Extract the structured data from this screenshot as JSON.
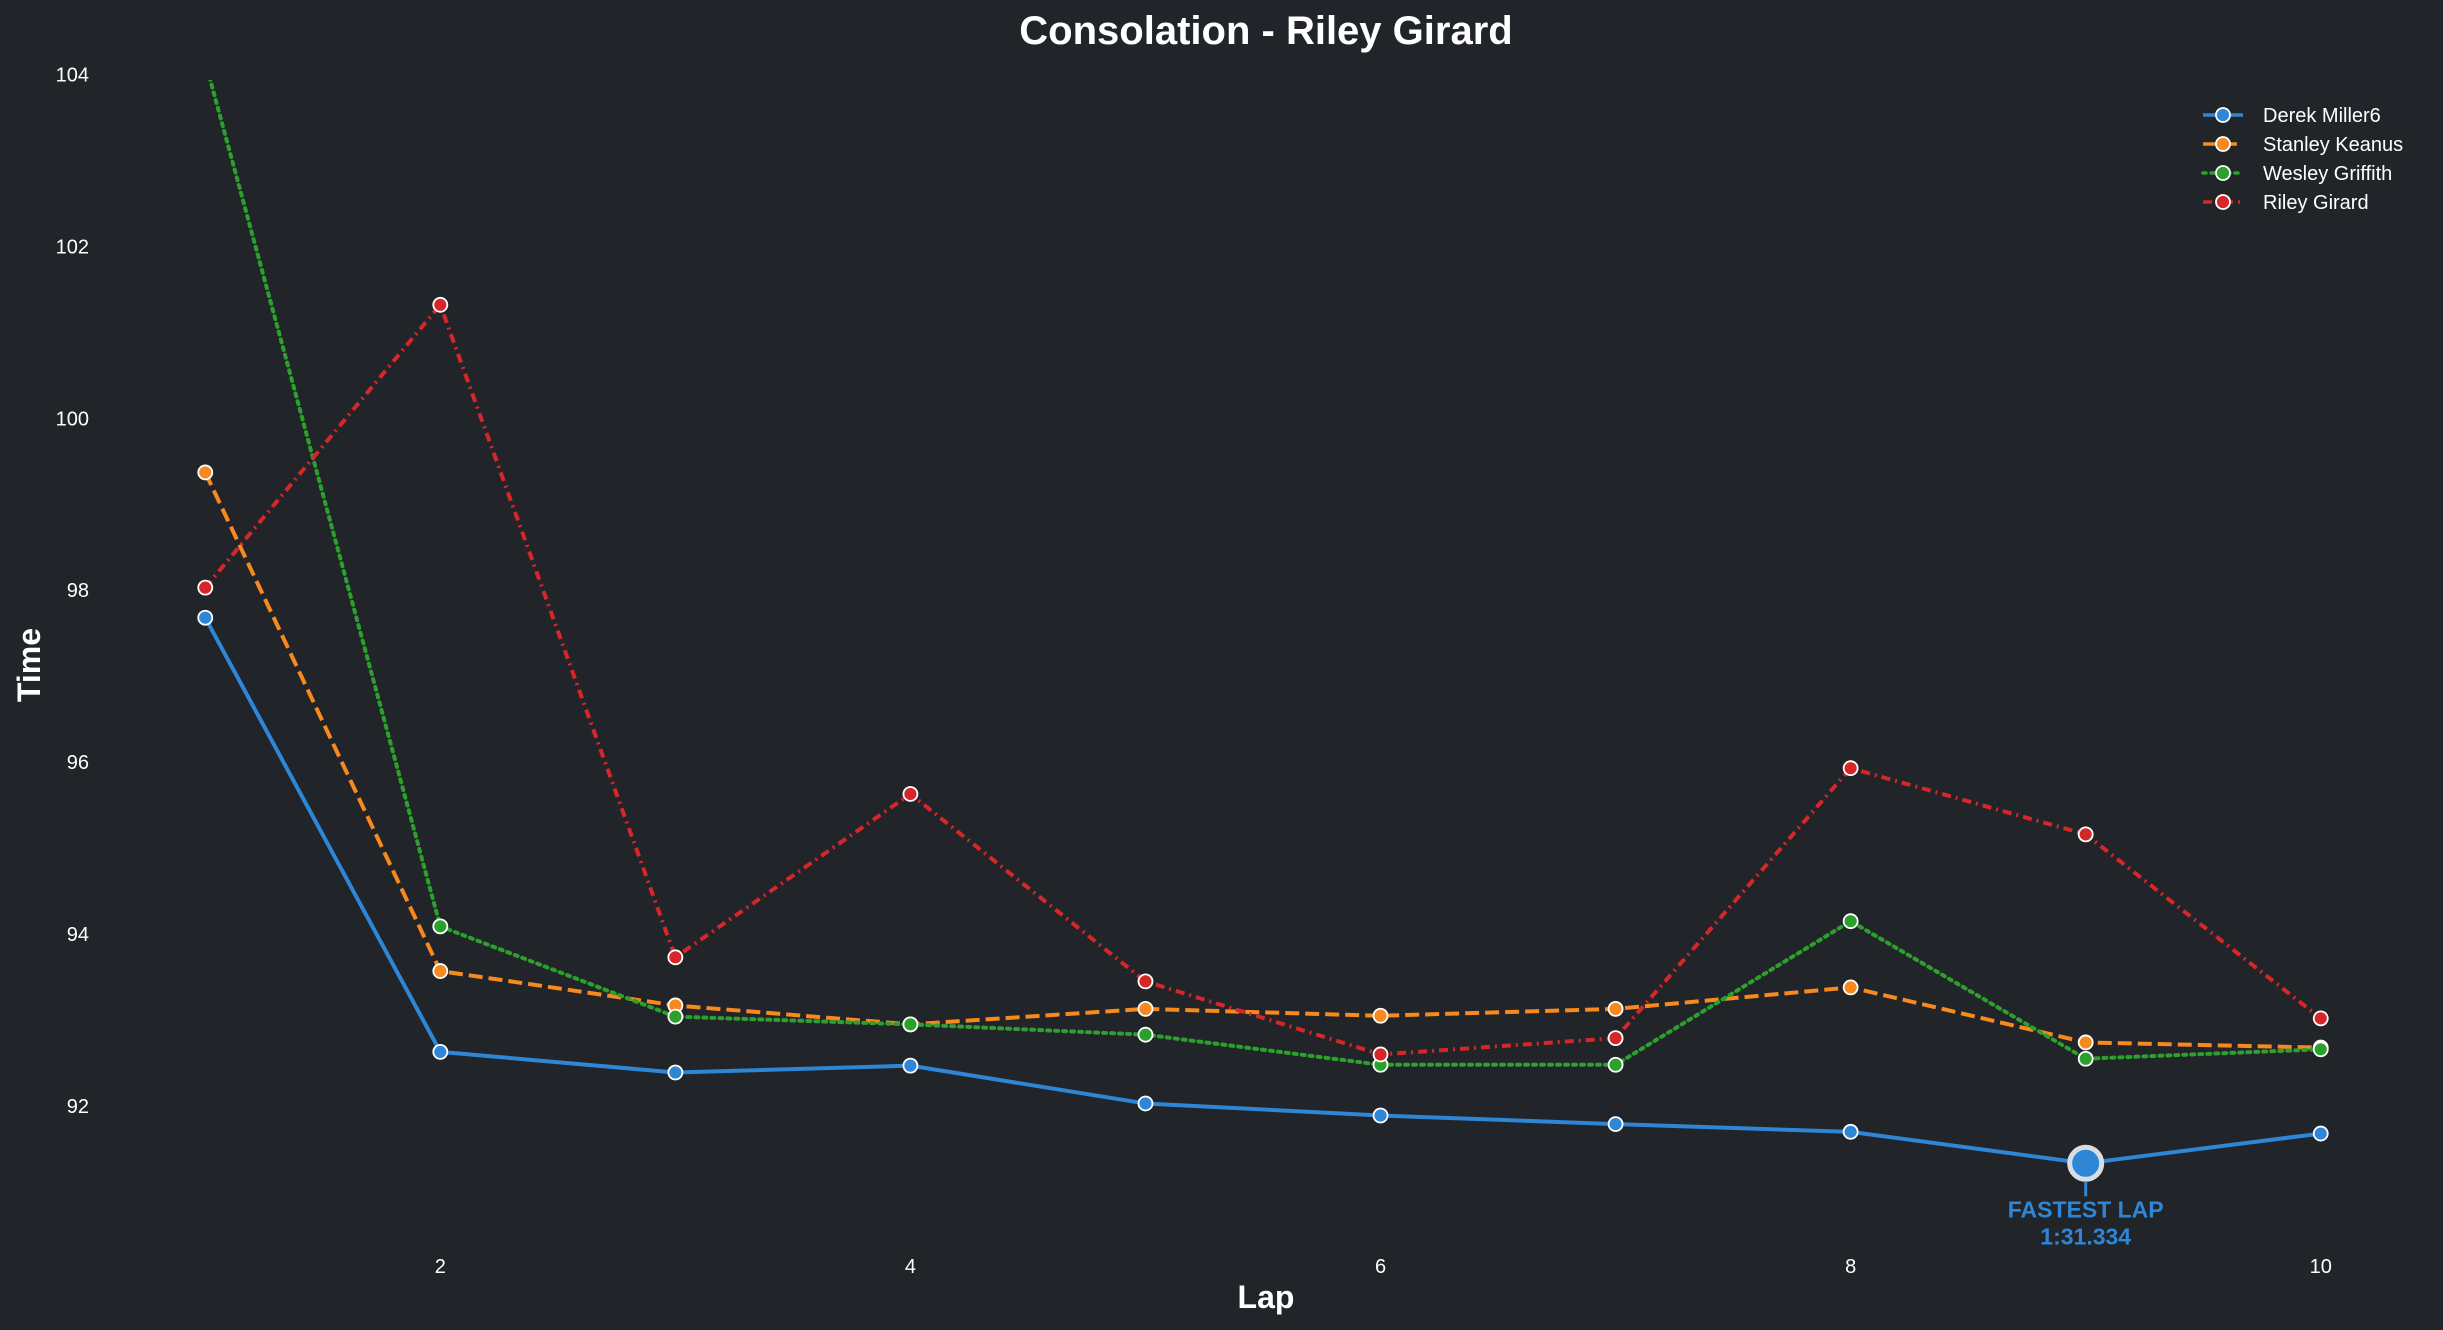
{
  "colors": {
    "background": "#212428",
    "text": "#ffffff",
    "marker_edge": "#ffffff"
  },
  "chart_data": {
    "type": "line",
    "title": "Consolation - Riley Girard",
    "xlabel": "Lap",
    "ylabel": "Time",
    "xlim": [
      0.85,
      10.15
    ],
    "ylim": [
      90.5,
      104.4
    ],
    "x_ticks": [
      2,
      4,
      6,
      8,
      10
    ],
    "y_ticks": [
      92,
      94,
      96,
      98,
      100,
      102,
      104
    ],
    "grid": false,
    "legend_position": "top-right",
    "x": [
      1,
      2,
      3,
      4,
      5,
      6,
      7,
      8,
      9,
      10
    ],
    "series": [
      {
        "name": "Derek Miller6",
        "color": "#2e86d6",
        "dash": "solid",
        "values": [
          97.68,
          92.63,
          92.39,
          92.47,
          92.03,
          91.89,
          91.79,
          91.7,
          91.334,
          91.68
        ]
      },
      {
        "name": "Stanley Keanus",
        "color": "#f7891f",
        "dash": "dashed",
        "values": [
          99.37,
          93.57,
          93.17,
          92.95,
          93.13,
          93.05,
          93.13,
          93.38,
          92.74,
          92.68
        ]
      },
      {
        "name": "Wesley Griffith",
        "color": "#2ca02c",
        "dash": "dotted",
        "values": [
          104.15,
          94.09,
          93.04,
          92.95,
          92.83,
          92.48,
          92.48,
          94.15,
          92.55,
          92.66
        ]
      },
      {
        "name": "Riley Girard",
        "color": "#d62728",
        "dash": "dashdot",
        "values": [
          98.03,
          101.32,
          93.73,
          95.63,
          93.45,
          92.6,
          92.79,
          95.93,
          95.16,
          93.02
        ]
      }
    ],
    "annotation": {
      "label": "FASTEST LAP",
      "value_text": "1:31.334",
      "series": "Derek Miller6",
      "lap": 9,
      "time": 91.334,
      "color": "#2e86d6"
    }
  }
}
